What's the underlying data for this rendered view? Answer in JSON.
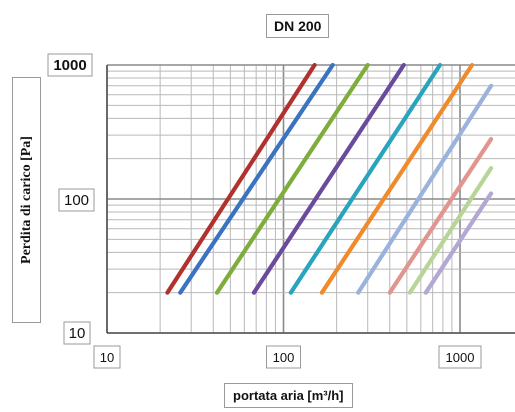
{
  "chart_data": {
    "type": "line",
    "title": "DN 200",
    "xlabel": "portata aria [m³/h]",
    "ylabel": "Perdita di carico [Pa]",
    "x_scale": "log",
    "y_scale": "log",
    "xlim": [
      10,
      1500
    ],
    "ylim": [
      10,
      1000
    ],
    "x_ticks": [
      "10",
      "100",
      "1000"
    ],
    "y_ticks": [
      "10",
      "100",
      "1000"
    ],
    "grid": true,
    "legend": "none",
    "series": [
      {
        "color": "#b0312d",
        "x": [
          22,
          150
        ],
        "y": [
          20,
          1000
        ]
      },
      {
        "color": "#3a73c0",
        "x": [
          26,
          190
        ],
        "y": [
          20,
          1000
        ]
      },
      {
        "color": "#7fad3c",
        "x": [
          42,
          300
        ],
        "y": [
          20,
          1000
        ]
      },
      {
        "color": "#6a4a9c",
        "x": [
          68,
          480
        ],
        "y": [
          20,
          1000
        ]
      },
      {
        "color": "#2aa4bd",
        "x": [
          110,
          770
        ],
        "y": [
          20,
          1000
        ]
      },
      {
        "color": "#ef8b2c",
        "x": [
          165,
          1170
        ],
        "y": [
          20,
          1000
        ]
      },
      {
        "color": "#9bb3dc",
        "x": [
          265,
          1500
        ],
        "y": [
          20,
          700
        ]
      },
      {
        "color": "#e09590",
        "x": [
          400,
          1500
        ],
        "y": [
          20,
          280
        ]
      },
      {
        "color": "#b8d598",
        "x": [
          520,
          1500
        ],
        "y": [
          20,
          170
        ]
      },
      {
        "color": "#b3a7d3",
        "x": [
          640,
          1500
        ],
        "y": [
          20,
          110
        ]
      }
    ]
  }
}
